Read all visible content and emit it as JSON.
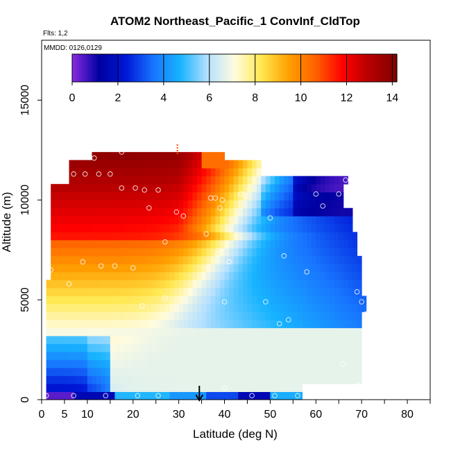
{
  "chart_data": {
    "type": "heatmap",
    "title": "ATOM2 Northeast_Pacific_1 ConvInf_CldTop",
    "flights_note": "Flts: 1,2",
    "dates_note": "MMDD: 0126,0129",
    "xlabel": "Latitude (deg N)",
    "ylabel": "Altitude (m)",
    "xlim": [
      0,
      85
    ],
    "ylim": [
      0,
      18000
    ],
    "x_ticks": [
      0,
      5,
      10,
      20,
      30,
      40,
      50,
      60,
      70,
      80
    ],
    "x_minor_ticks": [
      15,
      25,
      35,
      45,
      55,
      65,
      75,
      85
    ],
    "y_ticks": [
      0,
      5000,
      10000,
      15000
    ],
    "colorbar": {
      "min": 0,
      "max": 14.2,
      "ticks": [
        0,
        2,
        4,
        6,
        8,
        10,
        12,
        14
      ],
      "colors": [
        "#8a2be2",
        "#0000a0",
        "#0018d8",
        "#1874ff",
        "#18b4ff",
        "#b4e0ff",
        "#fffce0",
        "#ffe850",
        "#ffa000",
        "#ff6000",
        "#ff0000",
        "#b40000",
        "#800000"
      ]
    },
    "marker_latitude": 34.5,
    "top_marker_latitude": 30,
    "grid": false,
    "sample_points": [
      [
        1,
        200
      ],
      [
        7,
        200
      ],
      [
        14,
        200
      ],
      [
        21,
        200
      ],
      [
        25.5,
        200
      ],
      [
        40,
        600
      ],
      [
        46,
        200
      ],
      [
        51,
        200
      ],
      [
        56,
        200
      ],
      [
        69.5,
        700
      ],
      [
        66,
        1800
      ],
      [
        52,
        3800
      ],
      [
        54,
        4000
      ],
      [
        49,
        4900
      ],
      [
        40,
        4900
      ],
      [
        27,
        5100
      ],
      [
        22,
        4700
      ],
      [
        69,
        5400
      ],
      [
        70,
        4900
      ],
      [
        71,
        4300
      ],
      [
        6,
        5800
      ],
      [
        2,
        6500
      ],
      [
        9,
        6900
      ],
      [
        13,
        6700
      ],
      [
        16,
        6700
      ],
      [
        20,
        6600
      ],
      [
        41,
        6900
      ],
      [
        38.5,
        7300
      ],
      [
        53,
        7200
      ],
      [
        58,
        6400
      ],
      [
        27,
        7900
      ],
      [
        36,
        8300
      ],
      [
        31,
        9200
      ],
      [
        29.5,
        9400
      ],
      [
        23.5,
        9600
      ],
      [
        39,
        9600
      ],
      [
        39.5,
        10000
      ],
      [
        37,
        10100
      ],
      [
        38,
        10100
      ],
      [
        17.5,
        10600
      ],
      [
        20.5,
        10600
      ],
      [
        22.5,
        10500
      ],
      [
        25.5,
        10500
      ],
      [
        43.5,
        10300
      ],
      [
        50,
        9100
      ],
      [
        60,
        10300
      ],
      [
        61.5,
        9700
      ],
      [
        65,
        10300
      ],
      [
        3,
        11300
      ],
      [
        3.5,
        11300
      ],
      [
        7,
        11300
      ],
      [
        9.5,
        11300
      ],
      [
        12.5,
        11300
      ],
      [
        15,
        11300
      ],
      [
        11.5,
        12100
      ],
      [
        17.5,
        12400
      ],
      [
        66.5,
        11000
      ]
    ]
  }
}
